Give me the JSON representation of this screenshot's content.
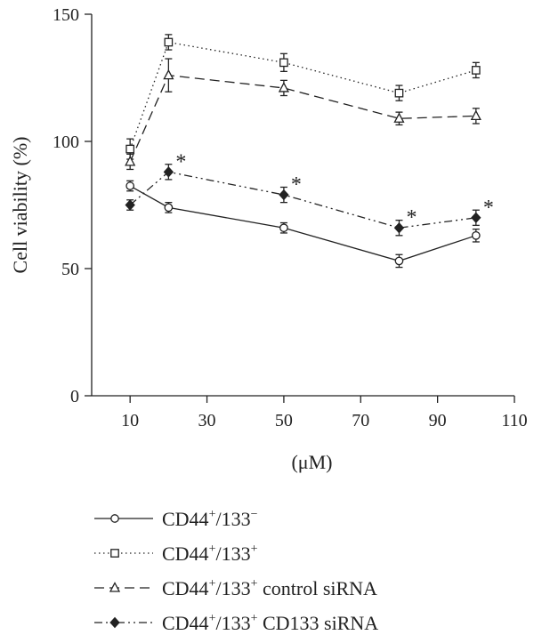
{
  "chart_data": {
    "type": "line",
    "title": "",
    "xlabel": "(μM)",
    "ylabel": "Cell viability (%)",
    "xlim": [
      0,
      110
    ],
    "ylim": [
      0,
      150
    ],
    "xticks": [
      10,
      30,
      50,
      70,
      90,
      110
    ],
    "xtick_labels": [
      "10",
      "30",
      "50",
      "70",
      "90",
      "110"
    ],
    "yticks": [
      0,
      50,
      100,
      150
    ],
    "ytick_labels": [
      "0",
      "50",
      "100",
      "150"
    ],
    "grid": false,
    "legend_position": "below",
    "x": [
      10,
      20,
      50,
      80,
      100
    ],
    "series": [
      {
        "name": "CD44⁺/133⁻",
        "legend_main": "CD44",
        "legend_sup1": "+",
        "legend_mid": "/133",
        "legend_sup2": "−",
        "legend_tail": "",
        "marker": "open-circle",
        "line_style": "solid",
        "values": [
          82.5,
          74,
          66,
          53,
          63
        ],
        "errors": [
          2,
          2,
          2,
          2.5,
          2.5
        ],
        "significant": [
          false,
          false,
          false,
          false,
          false
        ]
      },
      {
        "name": "CD44⁺/133⁺",
        "legend_main": "CD44",
        "legend_sup1": "+",
        "legend_mid": "/133",
        "legend_sup2": "+",
        "legend_tail": "",
        "marker": "open-square",
        "line_style": "dotted",
        "values": [
          97,
          139,
          131,
          119,
          128
        ],
        "errors": [
          4,
          3,
          3.5,
          3,
          3
        ],
        "significant": [
          false,
          false,
          false,
          false,
          false
        ]
      },
      {
        "name": "CD44⁺/133⁺ control siRNA",
        "legend_main": "CD44",
        "legend_sup1": "+",
        "legend_mid": "/133",
        "legend_sup2": "+",
        "legend_tail": " control siRNA",
        "marker": "open-triangle",
        "line_style": "dashed",
        "values": [
          92,
          126,
          121,
          109,
          110
        ],
        "errors": [
          3,
          6.5,
          3,
          2.5,
          3
        ],
        "significant": [
          false,
          false,
          false,
          false,
          false
        ]
      },
      {
        "name": "CD44⁺/133⁺ CD133 siRNA",
        "legend_main": "CD44",
        "legend_sup1": "+",
        "legend_mid": "/133",
        "legend_sup2": "+",
        "legend_tail": " CD133 siRNA",
        "marker": "filled-diamond",
        "line_style": "dash-dot",
        "values": [
          75,
          88,
          79,
          66,
          70
        ],
        "errors": [
          2,
          3,
          3,
          3,
          3
        ],
        "significant": [
          false,
          true,
          true,
          true,
          true
        ]
      }
    ],
    "annotation_symbol": "*"
  }
}
